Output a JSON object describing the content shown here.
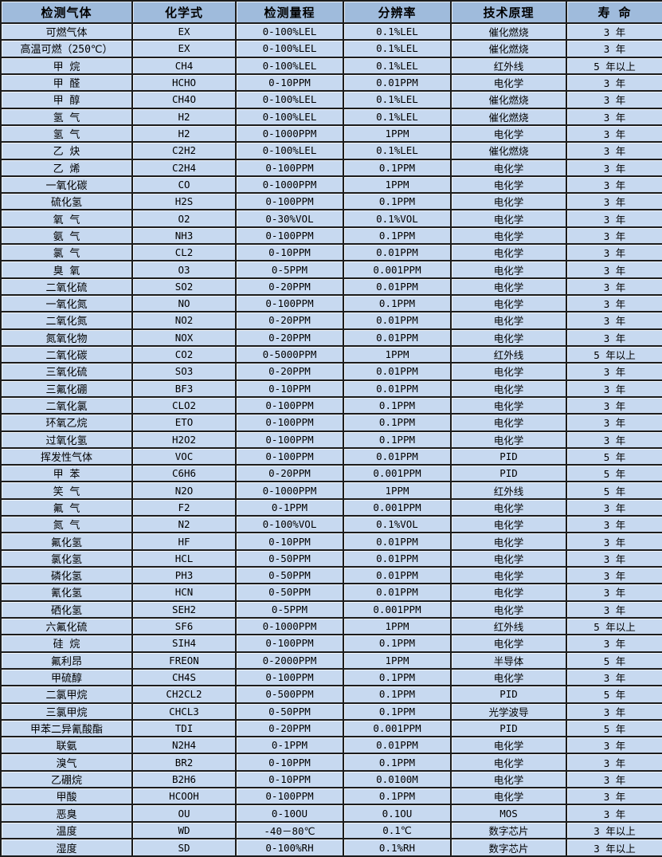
{
  "colors": {
    "header_bg": "#9FBBDC",
    "row_bg": "#C7D9F0",
    "border": "#1c1c1c",
    "text": "#000000"
  },
  "table": {
    "headers": {
      "gas": "检测气体",
      "formula": "化学式",
      "range": "检测量程",
      "resolution": "分辨率",
      "principle": "技术原理",
      "lifespan": "寿 命"
    },
    "rows": [
      [
        "可燃气体",
        "EX",
        "0-100%LEL",
        "0.1%LEL",
        "催化燃烧",
        "3 年"
      ],
      [
        "高温可燃（250℃）",
        "EX",
        "0-100%LEL",
        "0.1%LEL",
        "催化燃烧",
        "3 年"
      ],
      [
        "甲 烷",
        "CH4",
        "0-100%LEL",
        "0.1%LEL",
        "红外线",
        "5 年以上"
      ],
      [
        "甲 醛",
        "HCHO",
        "0-10PPM",
        "0.01PPM",
        "电化学",
        "3 年"
      ],
      [
        "甲 醇",
        "CH4O",
        "0-100%LEL",
        "0.1%LEL",
        "催化燃烧",
        "3 年"
      ],
      [
        "氢 气",
        "H2",
        "0-100%LEL",
        "0.1%LEL",
        "催化燃烧",
        "3 年"
      ],
      [
        "氢 气",
        "H2",
        "0-1000PPM",
        "1PPM",
        "电化学",
        "3 年"
      ],
      [
        "乙 炔",
        "C2H2",
        "0-100%LEL",
        "0.1%LEL",
        "催化燃烧",
        "3 年"
      ],
      [
        "乙 烯",
        "C2H4",
        "0-100PPM",
        "0.1PPM",
        "电化学",
        "3 年"
      ],
      [
        "一氧化碳",
        "CO",
        "0-1000PPM",
        "1PPM",
        "电化学",
        "3 年"
      ],
      [
        "硫化氢",
        "H2S",
        "0-100PPM",
        "0.1PPM",
        "电化学",
        "3 年"
      ],
      [
        "氧 气",
        "O2",
        "0-30%VOL",
        "0.1%VOL",
        "电化学",
        "3 年"
      ],
      [
        "氨 气",
        "NH3",
        "0-100PPM",
        "0.1PPM",
        "电化学",
        "3 年"
      ],
      [
        "氯 气",
        "CL2",
        "0-10PPM",
        "0.01PPM",
        "电化学",
        "3 年"
      ],
      [
        "臭 氧",
        "O3",
        "0-5PPM",
        "0.001PPM",
        "电化学",
        "3 年"
      ],
      [
        "二氧化硫",
        "SO2",
        "0-20PPM",
        "0.01PPM",
        "电化学",
        "3 年"
      ],
      [
        "一氧化氮",
        "NO",
        "0-100PPM",
        "0.1PPM",
        "电化学",
        "3 年"
      ],
      [
        "二氧化氮",
        "NO2",
        "0-20PPM",
        "0.01PPM",
        "电化学",
        "3 年"
      ],
      [
        "氮氧化物",
        "NOX",
        "0-20PPM",
        "0.01PPM",
        "电化学",
        "3 年"
      ],
      [
        "二氧化碳",
        "CO2",
        "0-5000PPM",
        "1PPM",
        "红外线",
        "5 年以上"
      ],
      [
        "三氧化硫",
        "SO3",
        "0-20PPM",
        "0.01PPM",
        "电化学",
        "3 年"
      ],
      [
        "三氟化硼",
        "BF3",
        "0-10PPM",
        "0.01PPM",
        "电化学",
        "3 年"
      ],
      [
        "二氧化氯",
        "CLO2",
        "0-100PPM",
        "0.1PPM",
        "电化学",
        "3 年"
      ],
      [
        "环氧乙烷",
        "ETO",
        "0-100PPM",
        "0.1PPM",
        "电化学",
        "3 年"
      ],
      [
        "过氧化氢",
        "H2O2",
        "0-100PPM",
        "0.1PPM",
        "电化学",
        "3 年"
      ],
      [
        "挥发性气体",
        "VOC",
        "0-100PPM",
        "0.01PPM",
        "PID",
        "5 年"
      ],
      [
        "甲 苯",
        "C6H6",
        "0-20PPM",
        "0.001PPM",
        "PID",
        "5 年"
      ],
      [
        "笑 气",
        "N2O",
        "0-1000PPM",
        "1PPM",
        "红外线",
        "5 年"
      ],
      [
        "氟 气",
        "F2",
        "0-1PPM",
        "0.001PPM",
        "电化学",
        "3 年"
      ],
      [
        "氮 气",
        "N2",
        "0-100%VOL",
        "0.1%VOL",
        "电化学",
        "3 年"
      ],
      [
        "氟化氢",
        "HF",
        "0-10PPM",
        "0.01PPM",
        "电化学",
        "3 年"
      ],
      [
        "氯化氢",
        "HCL",
        "0-50PPM",
        "0.01PPM",
        "电化学",
        "3 年"
      ],
      [
        "磷化氢",
        "PH3",
        "0-50PPM",
        "0.01PPM",
        "电化学",
        "3 年"
      ],
      [
        "氰化氢",
        "HCN",
        "0-50PPM",
        "0.01PPM",
        "电化学",
        "3 年"
      ],
      [
        "硒化氢",
        "SEH2",
        "0-5PPM",
        "0.001PPM",
        "电化学",
        "3 年"
      ],
      [
        "六氟化硫",
        "SF6",
        "0-1000PPM",
        "1PPM",
        "红外线",
        "5 年以上"
      ],
      [
        "硅 烷",
        "SIH4",
        "0-100PPM",
        "0.1PPM",
        "电化学",
        "3 年"
      ],
      [
        "氟利昂",
        "FREON",
        "0-2000PPM",
        "1PPM",
        "半导体",
        "5 年"
      ],
      [
        "甲硫醇",
        "CH4S",
        "0-100PPM",
        "0.1PPM",
        "电化学",
        "3 年"
      ],
      [
        "二氯甲烷",
        "CH2CL2",
        "0-500PPM",
        "0.1PPM",
        "PID",
        "5 年"
      ],
      [
        "三氯甲烷",
        "CHCL3",
        "0-50PPM",
        "0.1PPM",
        "光学波导",
        "3 年"
      ],
      [
        "甲苯二异氰酸酯",
        "TDI",
        "0-20PPM",
        "0.001PPM",
        "PID",
        "5 年"
      ],
      [
        "联氨",
        "N2H4",
        "0-1PPM",
        "0.01PPM",
        "电化学",
        "3 年"
      ],
      [
        "溴气",
        "BR2",
        "0-10PPM",
        "0.1PPM",
        "电化学",
        "3 年"
      ],
      [
        "乙硼烷",
        "B2H6",
        "0-10PPM",
        "0.0100M",
        "电化学",
        "3 年"
      ],
      [
        "甲酸",
        "HCOOH",
        "0-100PPM",
        "0.1PPM",
        "电化学",
        "3 年"
      ],
      [
        "恶臭",
        "OU",
        "0-10OU",
        "0.1OU",
        "MOS",
        "3 年"
      ],
      [
        "温度",
        "WD",
        "-40－80℃",
        "0.1℃",
        "数字芯片",
        "3 年以上"
      ],
      [
        "湿度",
        "SD",
        "0-100%RH",
        "0.1%RH",
        "数字芯片",
        "3 年以上"
      ]
    ]
  }
}
